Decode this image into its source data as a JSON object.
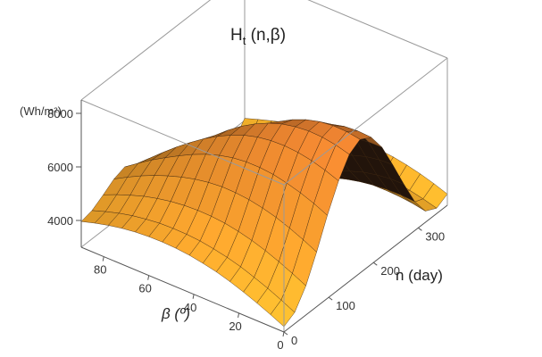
{
  "chart_data": {
    "type": "surface3d",
    "title": "H",
    "title_sub": "t",
    "title_args": " (n,β)",
    "zunit": "(Wh/m²)",
    "xlabel": "n (day)",
    "ylabel": "β (º)",
    "xlim": [
      0,
      365
    ],
    "ylim": [
      0,
      90
    ],
    "zlim": [
      3000,
      8500
    ],
    "xticks": [
      "0",
      "100",
      "200",
      "300"
    ],
    "yticks": [
      "0",
      "20",
      "40",
      "60",
      "80"
    ],
    "zticks": [
      "4000",
      "6000",
      "8000"
    ],
    "surface": {
      "n": [
        0,
        24,
        49,
        73,
        97,
        122,
        146,
        170,
        195,
        219,
        243,
        268,
        292,
        316,
        341,
        365
      ],
      "beta": [
        0,
        6,
        12,
        18,
        24,
        30,
        36,
        42,
        48,
        54,
        60,
        66,
        72,
        78,
        84,
        90
      ],
      "H": [
        [
          3200,
          3420,
          4090,
          5040,
          6100,
          7060,
          7740,
          7990,
          7740,
          7060,
          6100,
          5040,
          4090,
          3420,
          3200,
          3420
        ],
        [
          3440,
          3670,
          4340,
          5290,
          6330,
          7250,
          7880,
          8070,
          7770,
          7050,
          6070,
          5040,
          4120,
          3510,
          3340,
          3600
        ],
        [
          3660,
          3900,
          4570,
          5510,
          6520,
          7400,
          7960,
          8080,
          7730,
          6970,
          5980,
          4970,
          4110,
          3560,
          3450,
          3750
        ],
        [
          3860,
          4100,
          4770,
          5700,
          6670,
          7490,
          7980,
          8020,
          7600,
          6810,
          5820,
          4860,
          4060,
          3580,
          3530,
          3870
        ],
        [
          4040,
          4280,
          4940,
          5840,
          6780,
          7530,
          7930,
          7880,
          7400,
          6580,
          5600,
          4690,
          3980,
          3570,
          3580,
          3960
        ],
        [
          4190,
          4420,
          5070,
          5940,
          6830,
          7510,
          7820,
          7670,
          7120,
          6280,
          5330,
          4480,
          3860,
          3540,
          3600,
          4010
        ],
        [
          4300,
          4530,
          5160,
          5990,
          6830,
          7430,
          7640,
          7390,
          6770,
          5910,
          5000,
          4230,
          3710,
          3480,
          3580,
          4030
        ],
        [
          4390,
          4610,
          5210,
          6000,
          6770,
          7290,
          7400,
          7050,
          6360,
          5500,
          4640,
          3940,
          3520,
          3380,
          3540,
          4020
        ],
        [
          4440,
          4650,
          5220,
          5950,
          6650,
          7080,
          7100,
          6650,
          5900,
          5040,
          4230,
          3620,
          3300,
          3250,
          3460,
          3980
        ],
        [
          4460,
          4660,
          5190,
          5860,
          6480,
          6820,
          6740,
          6200,
          5400,
          4540,
          3800,
          3280,
          3060,
          3100,
          3370,
          3900
        ],
        [
          4450,
          4640,
          5130,
          5730,
          6260,
          6520,
          6330,
          5710,
          4880,
          4030,
          3350,
          2930,
          2810,
          2930,
          3250,
          3810
        ],
        [
          4410,
          4580,
          5030,
          5560,
          6000,
          6170,
          5890,
          5190,
          4330,
          3510,
          2900,
          2580,
          2560,
          2760,
          3120,
          3690
        ],
        [
          4340,
          4500,
          4900,
          5370,
          5720,
          5790,
          5410,
          4650,
          3780,
          3000,
          2470,
          2250,
          2320,
          2580,
          2980,
          3560
        ],
        [
          4240,
          4380,
          4730,
          5140,
          5420,
          5380,
          4920,
          4110,
          3240,
          2520,
          2080,
          1950,
          2100,
          2410,
          2830,
          3410
        ],
        [
          4110,
          4230,
          4540,
          4880,
          5090,
          4950,
          4420,
          3580,
          2740,
          2090,
          1750,
          1710,
          1920,
          2260,
          2680,
          3250
        ],
        [
          3960,
          4060,
          4320,
          4600,
          4740,
          4520,
          3930,
          3090,
          2290,
          1730,
          1490,
          1530,
          1780,
          2130,
          2530,
          3080
        ]
      ]
    }
  }
}
